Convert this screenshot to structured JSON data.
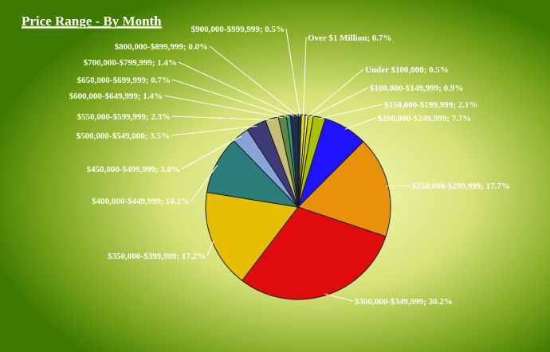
{
  "chart_data": {
    "type": "pie",
    "title": "Price Range - By Month",
    "slices": [
      {
        "label": "Over $1 Million",
        "value": 0.7,
        "text": "Over $1 Million; 0.7%",
        "color": "#e8e000"
      },
      {
        "label": "Under $100,000",
        "value": 0.5,
        "text": "Under $100,000; 0.5%",
        "color": "#f4f060"
      },
      {
        "label": "$100,000-$149,999",
        "value": 0.9,
        "text": "$100,000-$149,999; 0.9%",
        "color": "#c8d400"
      },
      {
        "label": "$150,000-$199,999",
        "value": 2.1,
        "text": "$150,000-$199,999; 2.1%",
        "color": "#a8c000"
      },
      {
        "label": "$200,000-$249,999",
        "value": 7.7,
        "text": "$200,000-$249,999; 7.7%",
        "color": "#1f12ff"
      },
      {
        "label": "$250,000-$299,999",
        "value": 17.7,
        "text": "$250,000-$299,999; 17.7%",
        "color": "#e8920a"
      },
      {
        "label": "$300,000-$349,999",
        "value": 30.2,
        "text": "$300,000-$349,999; 30.2%",
        "color": "#e00c0c"
      },
      {
        "label": "$350,000-$399,999",
        "value": 17.2,
        "text": "$350,000-$399,999; 17.2%",
        "color": "#e6bd00"
      },
      {
        "label": "$400,000-$449,999",
        "value": 10.2,
        "text": "$400,000-$449,999; 10.2%",
        "color": "#2a7d78"
      },
      {
        "label": "$450,000-$499,999",
        "value": 3.0,
        "text": "$450,000-$499,999; 3.0%",
        "color": "#86a4d8"
      },
      {
        "label": "$500,000-$549,000",
        "value": 3.5,
        "text": "$500,000-$549,000; 3.5%",
        "color": "#3f3a78"
      },
      {
        "label": "$550,000-$599,999",
        "value": 2.3,
        "text": "$550,000-$599,999; 2.3%",
        "color": "#c8bd74"
      },
      {
        "label": "$600,000-$649,999",
        "value": 1.4,
        "text": "$600,000-$649,999; 1.4%",
        "color": "#5a8a4a"
      },
      {
        "label": "$650,000-$699,999",
        "value": 0.7,
        "text": "$650,000-$699,999; 0.7%",
        "color": "#2e9a86"
      },
      {
        "label": "$700,000-$799,999",
        "value": 1.4,
        "text": "$700,000-$799,999; 1.4%",
        "color": "#20304a"
      },
      {
        "label": "$800,000-$899,999",
        "value": 0.0,
        "text": "$800,000-$899,999; 0.0%",
        "color": "#3c5c8a"
      },
      {
        "label": "$900,000-$999,999",
        "value": 0.5,
        "text": "$900,000-$999,999; 0.5%",
        "color": "#1a2d88"
      }
    ],
    "legend": "none",
    "background": {
      "outer": "#3e7a00",
      "inner": "#f6f6a8"
    }
  }
}
